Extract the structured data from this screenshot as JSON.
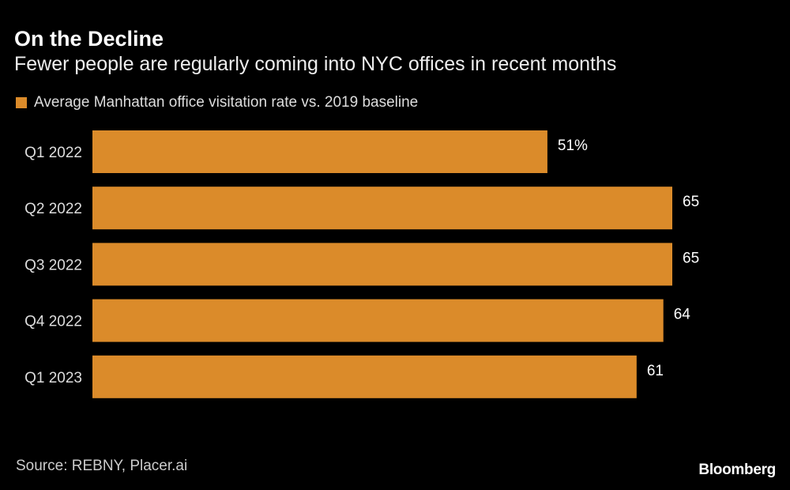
{
  "chart_data": {
    "type": "bar",
    "orientation": "horizontal",
    "title": "On the Decline",
    "subtitle": "Fewer people are regularly coming into NYC offices in recent months",
    "legend": {
      "label": "Average Manhattan office visitation rate vs. 2019 baseline",
      "placement": "top-left"
    },
    "categories": [
      "Q1 2022",
      "Q2 2022",
      "Q3 2022",
      "Q4 2022",
      "Q1 2023"
    ],
    "values": [
      51,
      65,
      65,
      64,
      61
    ],
    "data_labels": [
      "51%",
      "65",
      "65",
      "64",
      "61"
    ],
    "unit": "%",
    "xlim": [
      0,
      65
    ],
    "grid": false,
    "bar_color": "#DB8B2A",
    "source": "Source: REBNY, Placer.ai",
    "brand": "Bloomberg"
  }
}
